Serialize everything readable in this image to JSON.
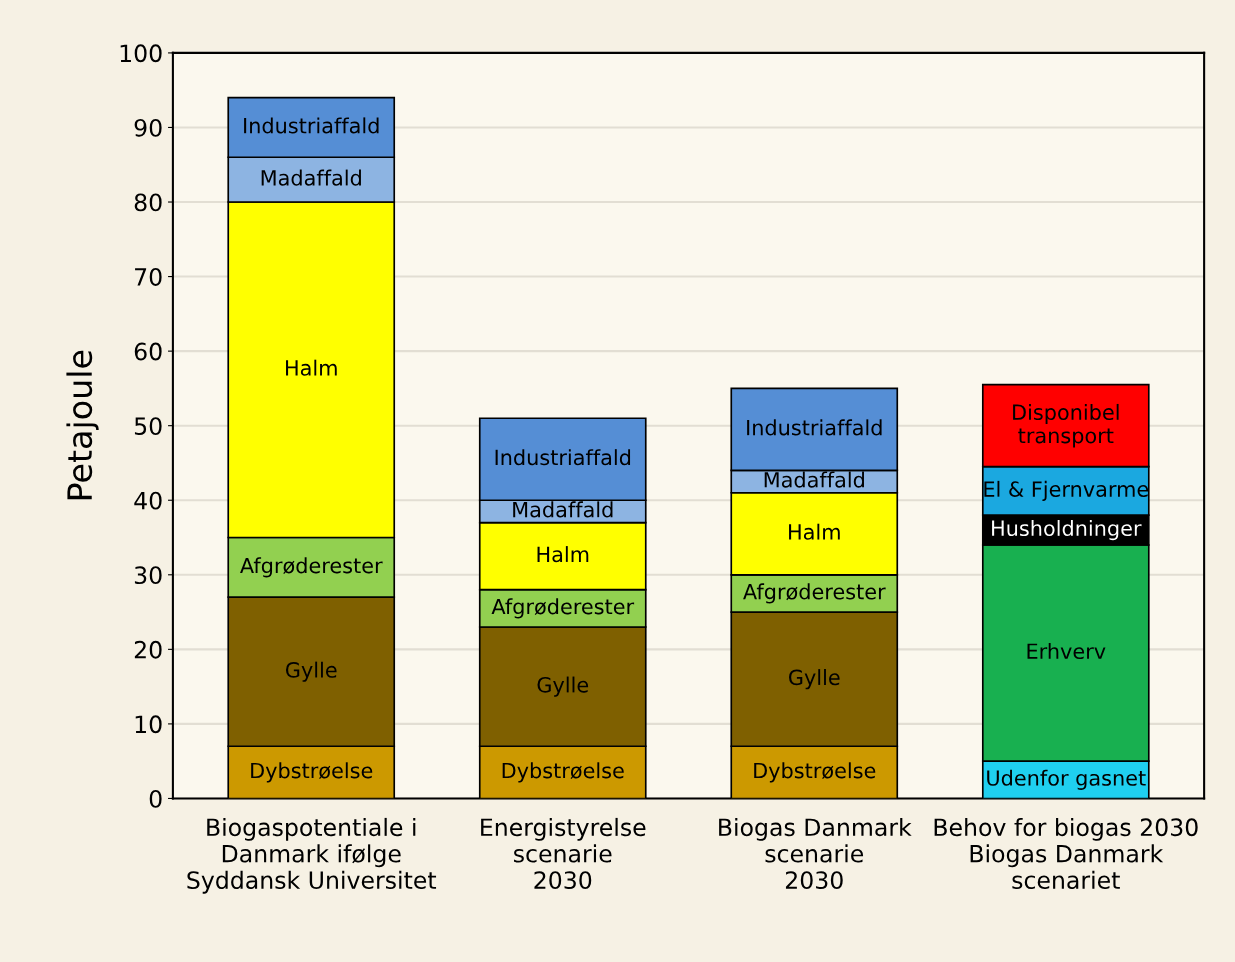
{
  "chart_data": {
    "type": "bar",
    "stacked": true,
    "ylabel": "Petajoule",
    "categories": [
      "Biogaspotentiale i\nDanmark ifølge\nSyddansk Universitet",
      "Energistyrelse\nscenarie\n2030",
      "Biogas Danmark\nscenarie\n2030",
      "Behov for biogas 2030\nBiogas Danmark\nscenariet"
    ],
    "series": [
      {
        "name": "Dybstrøelse",
        "color": "#cc9900",
        "values": [
          7,
          7,
          7,
          null
        ]
      },
      {
        "name": "Gylle",
        "color": "#7f6000",
        "values": [
          20,
          16,
          18,
          null
        ]
      },
      {
        "name": "Afgrøderester",
        "color": "#92d050",
        "values": [
          8,
          5,
          5,
          null
        ]
      },
      {
        "name": "Halm",
        "color": "#ffff00",
        "values": [
          45,
          9,
          11,
          null
        ]
      },
      {
        "name": "Madaffald",
        "color": "#8db4e2",
        "values": [
          6,
          3,
          3,
          null
        ]
      },
      {
        "name": "Industriaffald",
        "color": "#558ed5",
        "values": [
          8,
          11,
          11,
          null
        ]
      },
      {
        "name": "Udenfor gasnet",
        "color": "#1fd0f0",
        "values": [
          null,
          null,
          null,
          5
        ]
      },
      {
        "name": "Erhverv",
        "color": "#18b050",
        "values": [
          null,
          null,
          null,
          29
        ]
      },
      {
        "name": "Husholdninger",
        "color": "#000000",
        "values": [
          null,
          null,
          null,
          4
        ]
      },
      {
        "name": "El & Fjernvarme",
        "color": "#1ba8e0",
        "values": [
          null,
          null,
          null,
          6.5
        ]
      },
      {
        "name": "Disponibel\ntransport",
        "color": "#ff0000",
        "values": [
          null,
          null,
          null,
          11
        ]
      }
    ],
    "ylim": [
      0,
      100
    ],
    "yticks": [
      0,
      10,
      20,
      30,
      40,
      50,
      60,
      70,
      80,
      90,
      100
    ],
    "grid": "y",
    "legend": false
  }
}
